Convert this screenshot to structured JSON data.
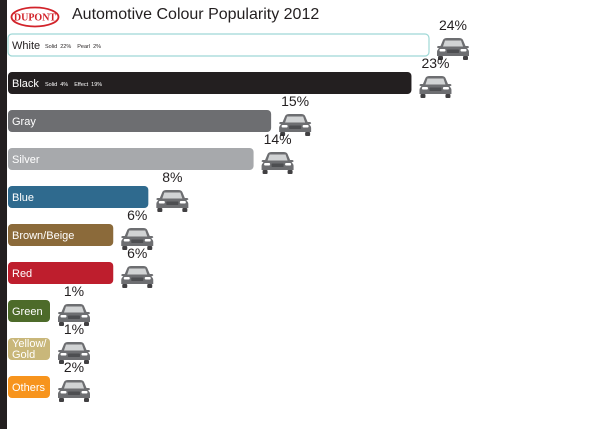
{
  "header": {
    "logo_text": "DUPONT",
    "title": "Automotive Colour Popularity 2012"
  },
  "colors": {
    "strip": "#231f20",
    "logo_red": "#d2232a",
    "car_body": "#6d6e71",
    "car_glass": "#d1d3d4"
  },
  "chart_data": {
    "type": "bar",
    "orientation": "horizontal",
    "unit": "%",
    "title": "Automotive Colour Popularity 2012",
    "categories": [
      "White",
      "Black",
      "Gray",
      "Silver",
      "Blue",
      "Brown/Beige",
      "Red",
      "Green",
      "Yellow/\nGold",
      "Others"
    ],
    "values": [
      24,
      23,
      15,
      14,
      8,
      6,
      6,
      1,
      1,
      2
    ],
    "value_labels": [
      "24%",
      "23%",
      "15%",
      "14%",
      "8%",
      "6%",
      "6%",
      "1%",
      "1%",
      "2%"
    ],
    "bar_colors": [
      "#ffffff",
      "#231f20",
      "#6d6e71",
      "#a7a9ac",
      "#2f6a8e",
      "#8b6a3a",
      "#be1e2d",
      "#4d6b2a",
      "#c9b77a",
      "#f7941d"
    ],
    "label_colors": [
      "#231f20",
      "#ffffff",
      "#ffffff",
      "#ffffff",
      "#ffffff",
      "#ffffff",
      "#ffffff",
      "#ffffff",
      "#ffffff",
      "#ffffff"
    ],
    "sublabels": [
      [
        "Solid",
        "22%",
        "Pearl",
        "2%"
      ],
      [
        "Solid",
        "4%",
        "Effect",
        "19%"
      ],
      [],
      [],
      [],
      [],
      [],
      [],
      [],
      []
    ],
    "legend": "none",
    "grid": false
  }
}
